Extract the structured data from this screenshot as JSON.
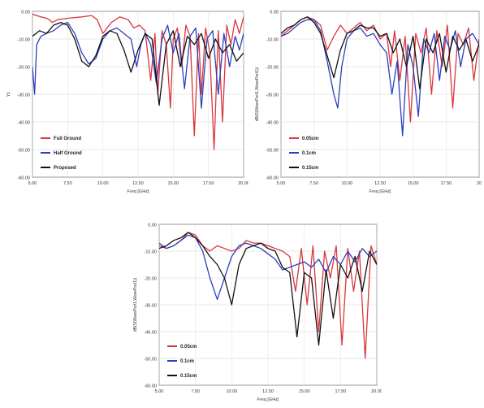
{
  "chart_data": [
    {
      "type": "line",
      "xlabel": "Freq [GHz]",
      "ylabel": "Y1",
      "xlim": [
        5.0,
        20.0
      ],
      "ylim": [
        -60.0,
        0.0
      ],
      "xticks": [
        "5.00",
        "7.50",
        "10.00",
        "12.50",
        "15.00",
        "17.50",
        "20.00"
      ],
      "yticks": [
        "0.00",
        "-10.00",
        "-20.00",
        "-30.00",
        "-40.00",
        "-50.00",
        "-60.00"
      ],
      "legend": "bottom-left",
      "series": [
        {
          "name": "Full Ground",
          "color": "#d9363e",
          "x": [
            5.0,
            5.3,
            5.6,
            6.0,
            6.2,
            6.4,
            6.8,
            7.5,
            8.5,
            9.2,
            9.6,
            10.0,
            10.6,
            11.2,
            11.8,
            12.2,
            12.6,
            13.0,
            13.4,
            13.7,
            13.9,
            14.2,
            14.5,
            14.8,
            15.0,
            15.3,
            15.6,
            15.9,
            16.2,
            16.5,
            16.8,
            17.0,
            17.3,
            17.6,
            17.9,
            18.2,
            18.5,
            18.8,
            19.1,
            19.4,
            19.7,
            20.0
          ],
          "y": [
            -1.0,
            -1.5,
            -2.0,
            -2.5,
            -3.0,
            -4.0,
            -3.0,
            -2.5,
            -2.0,
            -1.5,
            -3.0,
            -8.0,
            -4.0,
            -2.0,
            -3.0,
            -6.0,
            -5.0,
            -7.0,
            -25.0,
            -8.0,
            -30.0,
            -7.0,
            -12.0,
            -35.0,
            -10.0,
            -6.0,
            -20.0,
            -5.0,
            -9.0,
            -45.0,
            -8.0,
            -30.0,
            -6.0,
            -15.0,
            -50.0,
            -7.0,
            -40.0,
            -5.0,
            -12.0,
            -3.0,
            -8.0,
            -2.0
          ]
        },
        {
          "name": "Half Ground",
          "color": "#2a3fbf",
          "x": [
            5.0,
            5.15,
            5.3,
            5.6,
            6.0,
            6.5,
            7.0,
            7.5,
            8.0,
            8.5,
            9.0,
            9.5,
            10.0,
            10.5,
            11.0,
            11.5,
            12.0,
            12.4,
            12.7,
            13.0,
            13.4,
            13.8,
            14.2,
            14.6,
            15.0,
            15.4,
            15.8,
            16.2,
            16.6,
            17.0,
            17.4,
            17.8,
            18.2,
            18.6,
            19.0,
            19.4,
            19.7,
            20.0
          ],
          "y": [
            -20.0,
            -30.0,
            -12.0,
            -9.0,
            -8.0,
            -7.0,
            -5.0,
            -4.0,
            -8.0,
            -15.0,
            -19.0,
            -17.0,
            -10.0,
            -7.0,
            -6.0,
            -8.0,
            -10.0,
            -20.0,
            -12.0,
            -8.0,
            -12.0,
            -26.0,
            -10.0,
            -5.0,
            -15.0,
            -8.0,
            -28.0,
            -9.0,
            -6.0,
            -35.0,
            -10.0,
            -7.0,
            -30.0,
            -8.0,
            -20.0,
            -9.0,
            -14.0,
            -8.0
          ]
        },
        {
          "name": "Proposed",
          "color": "#111111",
          "x": [
            5.0,
            5.5,
            6.0,
            6.5,
            7.0,
            7.5,
            8.0,
            8.5,
            9.0,
            9.5,
            10.0,
            10.5,
            11.0,
            11.5,
            12.0,
            12.5,
            13.0,
            13.5,
            14.0,
            14.5,
            15.0,
            15.5,
            16.0,
            16.5,
            17.0,
            17.5,
            18.0,
            18.5,
            19.0,
            19.5,
            20.0
          ],
          "y": [
            -9.0,
            -7.0,
            -8.0,
            -5.0,
            -4.0,
            -5.0,
            -10.0,
            -18.0,
            -20.0,
            -16.0,
            -9.0,
            -7.0,
            -8.0,
            -14.0,
            -22.0,
            -14.0,
            -8.0,
            -10.0,
            -34.0,
            -12.0,
            -7.0,
            -20.0,
            -9.0,
            -12.0,
            -8.0,
            -17.0,
            -10.0,
            -15.0,
            -12.0,
            -18.0,
            -15.0
          ]
        }
      ]
    },
    {
      "type": "line",
      "xlabel": "Freq [GHz]",
      "ylabel": "dB(S(WavePort1,WavePort1))",
      "xlim": [
        5.0,
        20.0
      ],
      "ylim": [
        -60.0,
        0.0
      ],
      "xticks": [
        "5.00",
        "7.50",
        "10.00",
        "12.50",
        "15.00",
        "17.50",
        "20"
      ],
      "yticks": [
        "0.00",
        "-10.00",
        "-20.00",
        "-30.00",
        "-40.00",
        "-50.00",
        "-60.00"
      ],
      "legend": "bottom-left",
      "series": [
        {
          "name": "0.05cm",
          "color": "#d9363e",
          "x": [
            5.0,
            5.5,
            6.0,
            6.5,
            7.0,
            7.5,
            8.0,
            8.5,
            9.0,
            9.5,
            10.0,
            10.5,
            11.0,
            11.5,
            12.0,
            12.5,
            13.0,
            13.3,
            13.6,
            14.0,
            14.4,
            14.8,
            15.2,
            15.6,
            16.0,
            16.4,
            16.8,
            17.2,
            17.6,
            18.0,
            18.4,
            18.8,
            19.2,
            19.6,
            20.0
          ],
          "y": [
            -9.0,
            -7.0,
            -5.0,
            -3.0,
            -2.0,
            -3.0,
            -5.0,
            -14.0,
            -9.0,
            -5.0,
            -8.0,
            -6.0,
            -4.0,
            -7.0,
            -5.0,
            -10.0,
            -8.0,
            -20.0,
            -7.0,
            -25.0,
            -9.0,
            -40.0,
            -8.0,
            -15.0,
            -6.0,
            -30.0,
            -7.0,
            -20.0,
            -5.0,
            -35.0,
            -8.0,
            -12.0,
            -6.0,
            -25.0,
            -10.0
          ]
        },
        {
          "name": "0.1cm",
          "color": "#2a3fbf",
          "x": [
            5.0,
            5.5,
            6.0,
            6.5,
            7.0,
            7.5,
            8.0,
            8.5,
            9.0,
            9.3,
            9.6,
            10.0,
            10.5,
            11.0,
            11.5,
            12.0,
            12.5,
            13.0,
            13.4,
            13.8,
            14.2,
            14.6,
            15.0,
            15.4,
            15.8,
            16.2,
            16.6,
            17.0,
            17.4,
            17.8,
            18.2,
            18.6,
            19.0,
            19.5,
            20.0
          ],
          "y": [
            -9.0,
            -8.0,
            -6.0,
            -4.0,
            -3.0,
            -3.0,
            -7.0,
            -18.0,
            -30.0,
            -35.0,
            -20.0,
            -10.0,
            -7.0,
            -6.0,
            -9.0,
            -8.0,
            -12.0,
            -15.0,
            -30.0,
            -18.0,
            -45.0,
            -12.0,
            -20.0,
            -38.0,
            -10.0,
            -15.0,
            -8.0,
            -25.0,
            -9.0,
            -14.0,
            -7.0,
            -20.0,
            -10.0,
            -8.0,
            -12.0
          ]
        },
        {
          "name": "0.15cm",
          "color": "#111111",
          "x": [
            5.0,
            5.5,
            6.0,
            6.5,
            7.0,
            7.5,
            8.0,
            8.5,
            9.0,
            9.5,
            10.0,
            10.5,
            11.0,
            11.5,
            12.0,
            12.5,
            13.0,
            13.5,
            14.0,
            14.5,
            15.0,
            15.5,
            16.0,
            16.5,
            17.0,
            17.5,
            18.0,
            18.5,
            19.0,
            19.5,
            20.0
          ],
          "y": [
            -8.0,
            -6.0,
            -5.0,
            -3.0,
            -2.0,
            -4.0,
            -8.0,
            -16.0,
            -24.0,
            -14.0,
            -8.0,
            -7.0,
            -5.0,
            -6.0,
            -6.0,
            -9.0,
            -8.0,
            -15.0,
            -10.0,
            -20.0,
            -9.0,
            -28.0,
            -10.0,
            -15.0,
            -8.0,
            -22.0,
            -9.0,
            -14.0,
            -10.0,
            -18.0,
            -12.0
          ]
        }
      ]
    },
    {
      "type": "line",
      "xlabel": "Freq [GHz]",
      "ylabel": "dB(S(WavePort1,WavePort1))",
      "xlim": [
        5.0,
        20.0
      ],
      "ylim": [
        -60.0,
        0.0
      ],
      "xticks": [
        "5.00",
        "7.50",
        "10.00",
        "12.50",
        "15.00",
        "17.50",
        "20.00"
      ],
      "yticks": [
        "0.00",
        "-10.00",
        "-20.00",
        "-30.00",
        "-40.00",
        "-50.00",
        "-60.00"
      ],
      "legend": "bottom-left",
      "series": [
        {
          "name": "0.05cm",
          "color": "#d9363e",
          "x": [
            5.0,
            5.5,
            6.0,
            6.5,
            7.0,
            7.5,
            8.0,
            8.5,
            9.0,
            9.5,
            10.0,
            10.5,
            11.0,
            11.5,
            12.0,
            12.5,
            13.0,
            13.5,
            14.0,
            14.4,
            14.8,
            15.2,
            15.6,
            16.0,
            16.4,
            16.8,
            17.2,
            17.6,
            18.0,
            18.4,
            18.8,
            19.2,
            19.6,
            20.0
          ],
          "y": [
            -8.0,
            -9.0,
            -8.0,
            -6.0,
            -3.0,
            -4.0,
            -8.0,
            -10.0,
            -8.0,
            -9.0,
            -10.0,
            -9.0,
            -6.0,
            -7.0,
            -7.0,
            -8.0,
            -9.0,
            -10.0,
            -12.0,
            -25.0,
            -9.0,
            -30.0,
            -8.0,
            -40.0,
            -10.0,
            -20.0,
            -8.0,
            -45.0,
            -9.0,
            -25.0,
            -10.0,
            -50.0,
            -8.0,
            -15.0
          ]
        },
        {
          "name": "0.1cm",
          "color": "#2a3fbf",
          "x": [
            5.0,
            5.5,
            6.0,
            6.5,
            7.0,
            7.5,
            8.0,
            8.5,
            9.0,
            9.5,
            10.0,
            10.5,
            11.0,
            11.5,
            12.0,
            12.5,
            13.0,
            13.5,
            14.0,
            14.5,
            15.0,
            15.5,
            16.0,
            16.5,
            17.0,
            17.5,
            18.0,
            18.5,
            19.0,
            19.5,
            20.0
          ],
          "y": [
            -7.0,
            -9.0,
            -8.0,
            -6.0,
            -4.0,
            -5.0,
            -10.0,
            -20.0,
            -28.0,
            -20.0,
            -12.0,
            -8.0,
            -7.0,
            -8.0,
            -9.0,
            -11.0,
            -13.0,
            -17.0,
            -16.0,
            -15.0,
            -14.0,
            -16.0,
            -13.0,
            -18.0,
            -12.0,
            -15.0,
            -10.0,
            -14.0,
            -9.0,
            -12.0,
            -10.0
          ]
        },
        {
          "name": "0.15cm",
          "color": "#111111",
          "x": [
            5.0,
            5.5,
            6.0,
            6.5,
            7.0,
            7.5,
            8.0,
            8.5,
            9.0,
            9.5,
            10.0,
            10.5,
            11.0,
            11.5,
            12.0,
            12.5,
            13.0,
            13.5,
            14.0,
            14.5,
            15.0,
            15.5,
            16.0,
            16.5,
            17.0,
            17.5,
            18.0,
            18.5,
            19.0,
            19.5,
            20.0
          ],
          "y": [
            -9.0,
            -8.0,
            -6.0,
            -5.0,
            -3.0,
            -5.0,
            -8.0,
            -12.0,
            -15.0,
            -20.0,
            -30.0,
            -15.0,
            -9.0,
            -8.0,
            -7.0,
            -9.0,
            -10.0,
            -16.0,
            -18.0,
            -42.0,
            -18.0,
            -20.0,
            -45.0,
            -17.0,
            -35.0,
            -15.0,
            -20.0,
            -12.0,
            -25.0,
            -10.0,
            -15.0
          ]
        }
      ]
    }
  ]
}
